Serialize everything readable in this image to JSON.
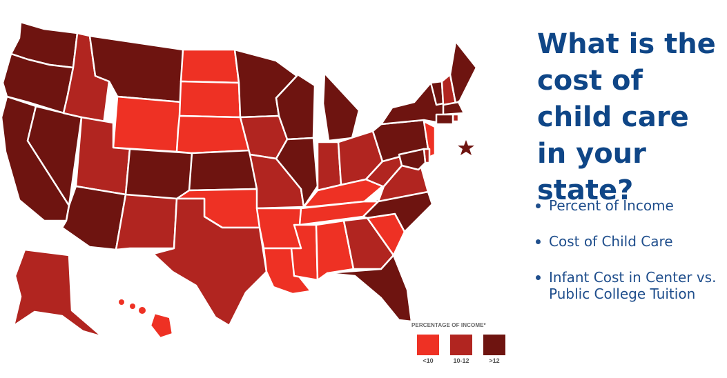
{
  "title": "What is the cost of child care in your state?",
  "menu": [
    {
      "label": "Percent of Income"
    },
    {
      "label": "Cost of Child Care"
    },
    {
      "label": "Infant Cost in Center vs. Public College Tuition"
    }
  ],
  "legend": {
    "title": "PERCENTAGE OF INCOME*",
    "categories": [
      {
        "label": "<10",
        "color": "#ee3124"
      },
      {
        "label": "10-12",
        "color": "#b12520"
      },
      {
        "label": ">12",
        "color": "#6e1410"
      }
    ]
  },
  "colors": {
    "title": "#0f4687",
    "menu": "#1f4e8c",
    "border": "#ffffff"
  },
  "dc_marker": {
    "icon": "star-icon",
    "category": ">12"
  },
  "map_data": {
    "type": "choropleth",
    "measure": "percentage of income",
    "states": {
      "WA": ">12",
      "OR": ">12",
      "CA": ">12",
      "NV": ">12",
      "ID": "10-12",
      "MT": ">12",
      "WY": "<10",
      "UT": "10-12",
      "AZ": ">12",
      "CO": ">12",
      "NM": "10-12",
      "ND": "<10",
      "SD": "<10",
      "NE": "<10",
      "KS": ">12",
      "OK": "<10",
      "TX": "10-12",
      "MN": ">12",
      "IA": "10-12",
      "MO": "10-12",
      "AR": "<10",
      "LA": "<10",
      "WI": ">12",
      "IL": ">12",
      "MI": ">12",
      "IN": "10-12",
      "OH": "10-12",
      "KY": "<10",
      "TN": "<10",
      "MS": "<10",
      "AL": "<10",
      "GA": "10-12",
      "FL": ">12",
      "SC": "<10",
      "NC": ">12",
      "VA": "10-12",
      "WV": "10-12",
      "PA": ">12",
      "NY": ">12",
      "VT": ">12",
      "NH": "10-12",
      "ME": ">12",
      "MA": ">12",
      "RI": "10-12",
      "CT": ">12",
      "NJ": "<10",
      "DE": "10-12",
      "MD": ">12",
      "AK": "10-12",
      "HI": "<10"
    }
  }
}
